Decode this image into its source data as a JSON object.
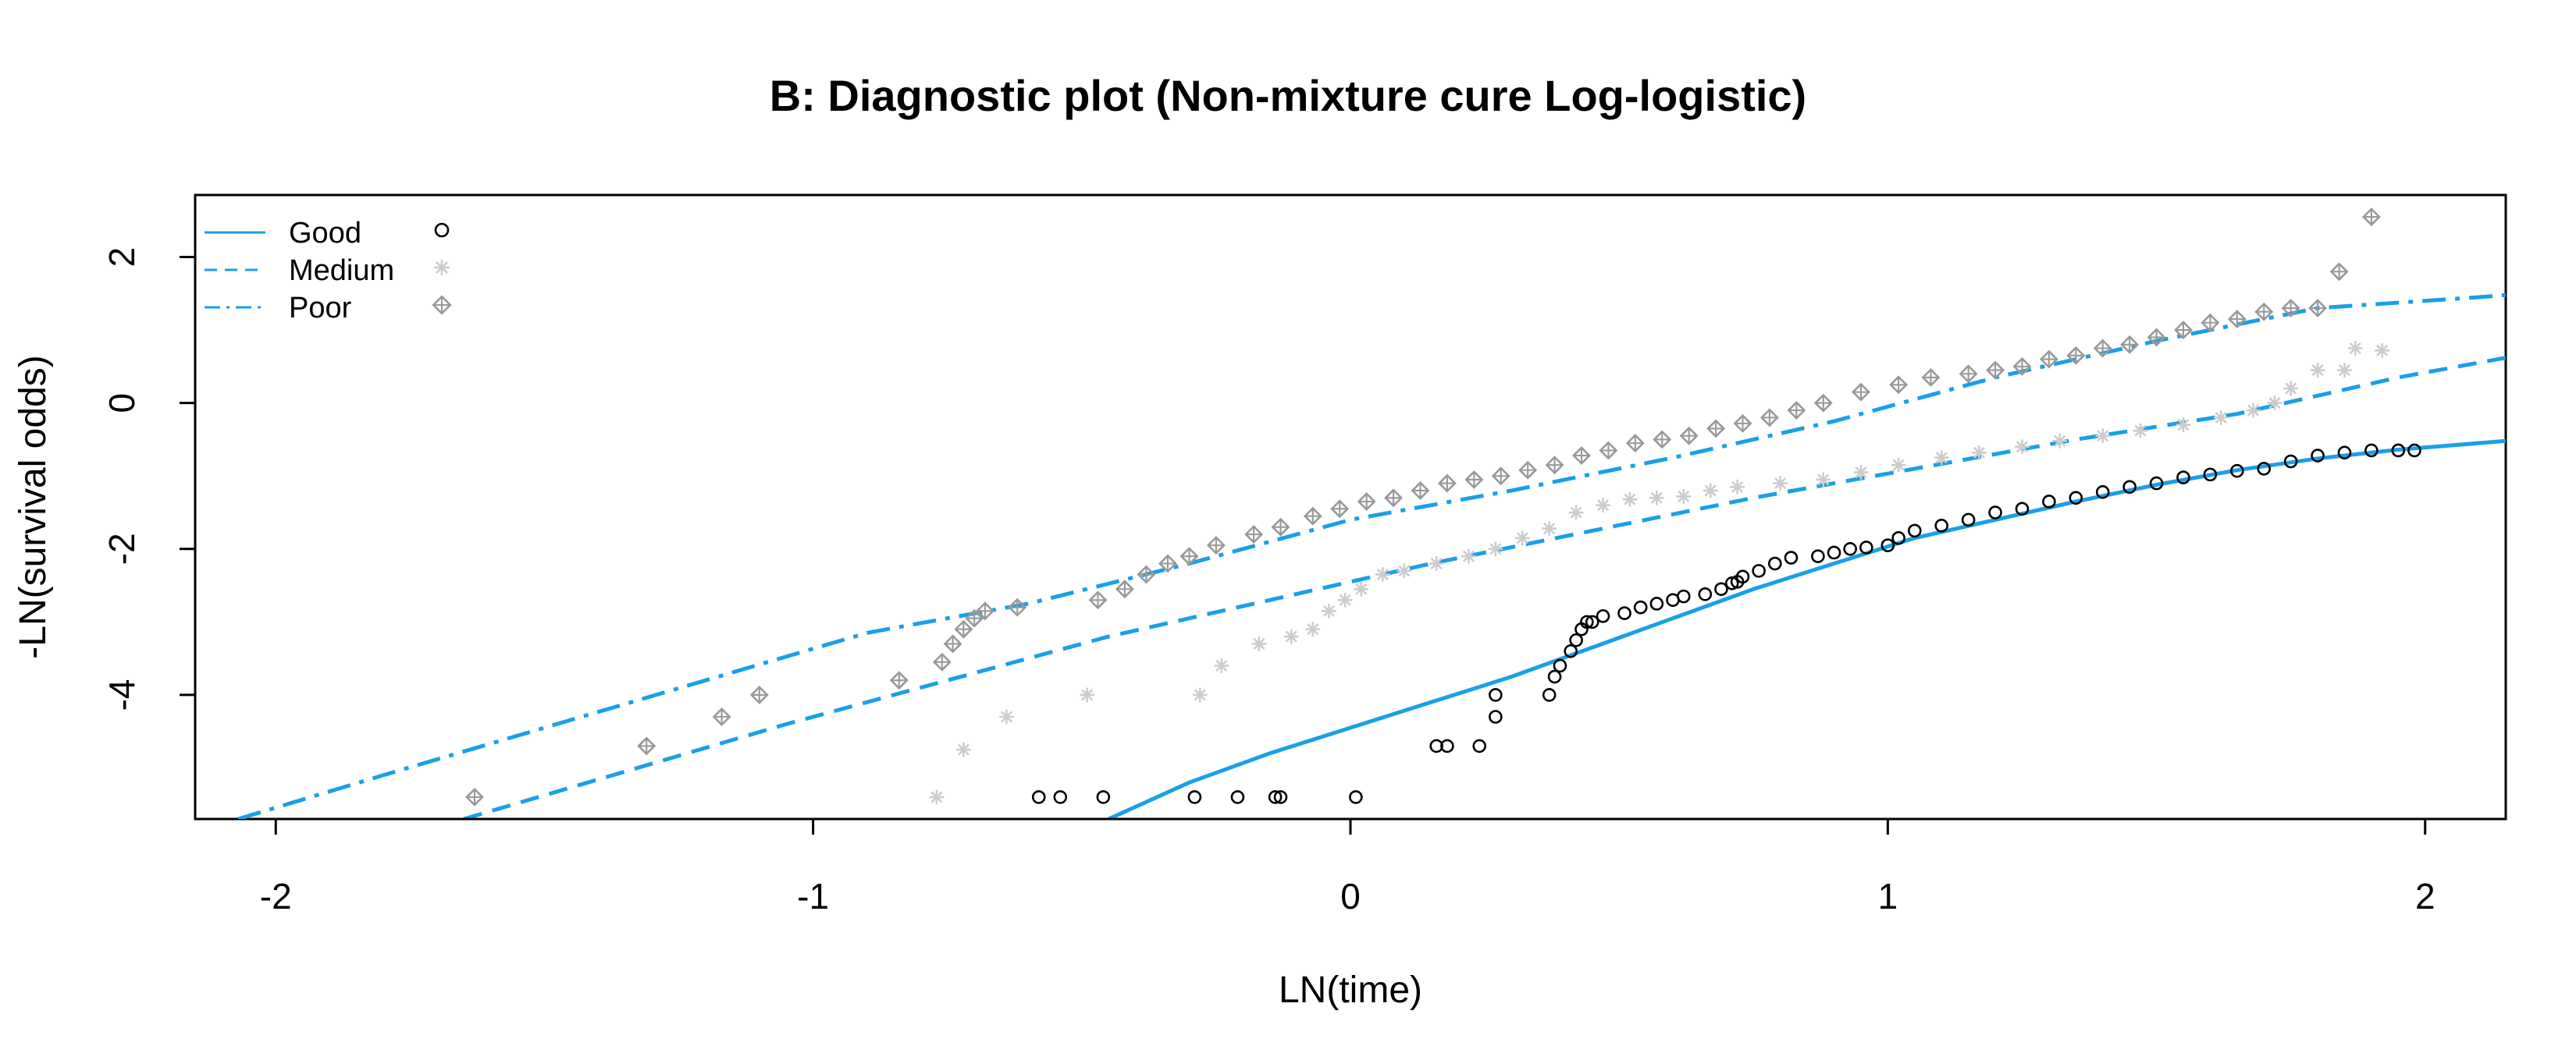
{
  "chart_data": {
    "type": "scatter",
    "title": "B: Diagnostic plot (Non-mixture cure Log-logistic)",
    "xlabel": "LN(time)",
    "ylabel": "-LN(survival odds)",
    "xlim": [
      -2.15,
      2.15
    ],
    "ylim": [
      -5.7,
      2.85
    ],
    "xticks": [
      -2,
      -1,
      0,
      1,
      2
    ],
    "yticks": [
      -4,
      -2,
      0,
      2
    ],
    "xtick_labels": [
      "-2",
      "-1",
      "0",
      "1",
      "2"
    ],
    "ytick_labels": [
      "-4",
      "-2",
      "0",
      "2"
    ],
    "grid": false,
    "legend_position": "top-left",
    "colors": {
      "line": "#1a9fe8",
      "good_points": "#000000",
      "medium_points": "#cccccc",
      "poor_points": "#999999"
    },
    "series": [
      {
        "name": "Good",
        "line_style": "solid",
        "marker": "circle",
        "line": {
          "x": [
            -0.45,
            -0.3,
            -0.15,
            0,
            0.15,
            0.3,
            0.45,
            0.6,
            0.75,
            0.9,
            1.05,
            1.2,
            1.35,
            1.5,
            1.65,
            1.8,
            1.95,
            2.15
          ],
          "y": [
            -5.7,
            -5.2,
            -4.8,
            -4.45,
            -4.1,
            -3.75,
            -3.35,
            -2.95,
            -2.55,
            -2.2,
            -1.85,
            -1.6,
            -1.35,
            -1.12,
            -0.92,
            -0.76,
            -0.64,
            -0.52
          ]
        },
        "points": {
          "x": [
            -0.58,
            -0.54,
            -0.46,
            -0.29,
            -0.21,
            -0.14,
            -0.13,
            0.01,
            0.16,
            0.18,
            0.24,
            0.27,
            0.27,
            0.37,
            0.38,
            0.39,
            0.41,
            0.42,
            0.43,
            0.44,
            0.45,
            0.47,
            0.51,
            0.54,
            0.57,
            0.6,
            0.62,
            0.66,
            0.69,
            0.71,
            0.72,
            0.73,
            0.76,
            0.79,
            0.82,
            0.87,
            0.9,
            0.93,
            0.96,
            1.0,
            1.02,
            1.05,
            1.1,
            1.15,
            1.2,
            1.25,
            1.3,
            1.35,
            1.4,
            1.45,
            1.5,
            1.55,
            1.6,
            1.65,
            1.7,
            1.75,
            1.8,
            1.85,
            1.9,
            1.95,
            1.98
          ],
          "y": [
            -5.4,
            -5.4,
            -5.4,
            -5.4,
            -5.4,
            -5.4,
            -5.4,
            -5.4,
            -4.7,
            -4.7,
            -4.7,
            -4.3,
            -4.0,
            -4.0,
            -3.75,
            -3.6,
            -3.4,
            -3.25,
            -3.1,
            -3.0,
            -3.0,
            -2.92,
            -2.88,
            -2.8,
            -2.75,
            -2.7,
            -2.65,
            -2.62,
            -2.55,
            -2.47,
            -2.45,
            -2.38,
            -2.3,
            -2.2,
            -2.12,
            -2.1,
            -2.05,
            -2.0,
            -1.98,
            -1.95,
            -1.85,
            -1.75,
            -1.68,
            -1.6,
            -1.5,
            -1.45,
            -1.35,
            -1.3,
            -1.22,
            -1.15,
            -1.1,
            -1.02,
            -0.98,
            -0.93,
            -0.9,
            -0.8,
            -0.72,
            -0.68,
            -0.65,
            -0.65,
            -0.65
          ]
        }
      },
      {
        "name": "Medium",
        "line_style": "dashed",
        "marker": "asterisk",
        "line": {
          "x": [
            -1.65,
            -1.35,
            -1.05,
            -0.75,
            -0.45,
            -0.15,
            0.15,
            0.45,
            0.75,
            1.05,
            1.35,
            1.65,
            1.95,
            2.15
          ],
          "y": [
            -5.7,
            -5.05,
            -4.4,
            -3.8,
            -3.2,
            -2.7,
            -2.2,
            -1.75,
            -1.3,
            -0.9,
            -0.5,
            -0.15,
            0.35,
            0.62
          ]
        },
        "points": {
          "x": [
            -0.77,
            -0.72,
            -0.64,
            -0.49,
            -0.28,
            -0.24,
            -0.17,
            -0.11,
            -0.07,
            -0.04,
            -0.01,
            0.02,
            0.06,
            0.1,
            0.16,
            0.22,
            0.27,
            0.32,
            0.37,
            0.42,
            0.47,
            0.52,
            0.57,
            0.62,
            0.67,
            0.72,
            0.8,
            0.88,
            0.95,
            1.02,
            1.1,
            1.17,
            1.25,
            1.32,
            1.4,
            1.47,
            1.55,
            1.62,
            1.68,
            1.72,
            1.75,
            1.8,
            1.85,
            1.87,
            1.92
          ],
          "y": [
            -5.4,
            -4.75,
            -4.3,
            -4.0,
            -4.0,
            -3.6,
            -3.3,
            -3.2,
            -3.1,
            -2.85,
            -2.7,
            -2.55,
            -2.35,
            -2.3,
            -2.2,
            -2.1,
            -2.0,
            -1.85,
            -1.72,
            -1.5,
            -1.4,
            -1.32,
            -1.3,
            -1.28,
            -1.2,
            -1.15,
            -1.1,
            -1.05,
            -0.95,
            -0.85,
            -0.75,
            -0.68,
            -0.6,
            -0.52,
            -0.45,
            -0.38,
            -0.3,
            -0.2,
            -0.1,
            0.0,
            0.2,
            0.45,
            0.45,
            0.75,
            0.72
          ]
        }
      },
      {
        "name": "Poor",
        "line_style": "dotdash",
        "marker": "diamond-plus",
        "line": {
          "x": [
            -2.07,
            -1.8,
            -1.5,
            -1.2,
            -0.9,
            -0.6,
            -0.3,
            0.0,
            0.3,
            0.6,
            0.9,
            1.2,
            1.5,
            1.8,
            2.1,
            2.15
          ],
          "y": [
            -5.7,
            -5.1,
            -4.45,
            -3.8,
            -3.15,
            -2.75,
            -2.2,
            -1.6,
            -1.2,
            -0.75,
            -0.25,
            0.35,
            0.85,
            1.3,
            1.45,
            1.48
          ]
        },
        "points": {
          "x": [
            -1.63,
            -1.31,
            -1.17,
            -1.1,
            -0.84,
            -0.76,
            -0.74,
            -0.72,
            -0.7,
            -0.68,
            -0.62,
            -0.47,
            -0.42,
            -0.38,
            -0.34,
            -0.3,
            -0.25,
            -0.18,
            -0.13,
            -0.07,
            -0.02,
            0.03,
            0.08,
            0.13,
            0.18,
            0.23,
            0.28,
            0.33,
            0.38,
            0.43,
            0.48,
            0.53,
            0.58,
            0.63,
            0.68,
            0.73,
            0.78,
            0.83,
            0.88,
            0.95,
            1.02,
            1.08,
            1.15,
            1.2,
            1.25,
            1.3,
            1.35,
            1.4,
            1.45,
            1.5,
            1.55,
            1.6,
            1.65,
            1.7,
            1.75,
            1.8,
            1.84,
            1.9
          ],
          "y": [
            -5.4,
            -4.7,
            -4.3,
            -4.0,
            -3.8,
            -3.55,
            -3.3,
            -3.1,
            -2.95,
            -2.85,
            -2.8,
            -2.7,
            -2.55,
            -2.35,
            -2.2,
            -2.1,
            -1.95,
            -1.8,
            -1.7,
            -1.55,
            -1.45,
            -1.35,
            -1.3,
            -1.2,
            -1.1,
            -1.05,
            -1.0,
            -0.92,
            -0.85,
            -0.72,
            -0.65,
            -0.55,
            -0.5,
            -0.45,
            -0.35,
            -0.28,
            -0.2,
            -0.1,
            0.0,
            0.15,
            0.25,
            0.35,
            0.4,
            0.45,
            0.5,
            0.6,
            0.65,
            0.75,
            0.8,
            0.9,
            1.0,
            1.1,
            1.15,
            1.25,
            1.3,
            1.3,
            1.8,
            2.55
          ]
        }
      }
    ]
  }
}
